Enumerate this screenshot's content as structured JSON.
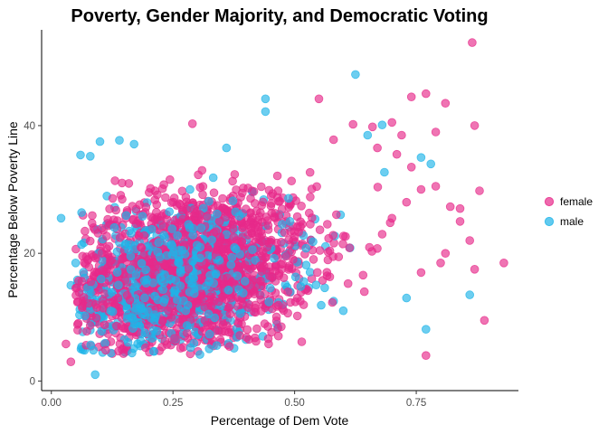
{
  "chart_data": {
    "type": "scatter",
    "title": "Poverty, Gender Majority, and Democratic Voting",
    "xlabel": "Percentage of Dem Vote",
    "ylabel": "Percentage Below Poverty Line",
    "xlim": [
      -0.02,
      0.96
    ],
    "ylim": [
      -1.5,
      55
    ],
    "x_ticks": [
      0,
      0.25,
      0.5,
      0.75
    ],
    "x_tick_labels": [
      "0.00",
      "0.25",
      "0.50",
      "0.75"
    ],
    "y_ticks": [
      0,
      20,
      40
    ],
    "y_tick_labels": [
      "0",
      "20",
      "40"
    ],
    "grid": false,
    "legend_position": "right",
    "series": [
      {
        "name": "female",
        "color": "#E7298A",
        "cluster": {
          "n": 1750,
          "x_mean": 0.28,
          "x_sd": 0.13,
          "y_mean": 17,
          "y_sd": 6.5
        },
        "points": [
          [
            0.865,
            53
          ],
          [
            0.77,
            45
          ],
          [
            0.74,
            44.5
          ],
          [
            0.55,
            44.2
          ],
          [
            0.81,
            43.5
          ],
          [
            0.7,
            40.5
          ],
          [
            0.62,
            40.2
          ],
          [
            0.29,
            40.3
          ],
          [
            0.87,
            40.0
          ],
          [
            0.66,
            39.8
          ],
          [
            0.72,
            38.5
          ],
          [
            0.79,
            39.0
          ],
          [
            0.58,
            37.8
          ],
          [
            0.93,
            18.5
          ],
          [
            0.89,
            9.5
          ],
          [
            0.87,
            17.5
          ],
          [
            0.77,
            4.0
          ],
          [
            0.04,
            3.0
          ],
          [
            0.03,
            5.8
          ],
          [
            0.88,
            29.8
          ],
          [
            0.84,
            27.0
          ],
          [
            0.86,
            22.0
          ],
          [
            0.81,
            20.0
          ],
          [
            0.8,
            18.5
          ],
          [
            0.76,
            17.0
          ],
          [
            0.84,
            25.0
          ],
          [
            0.82,
            27.3
          ],
          [
            0.79,
            30.5
          ],
          [
            0.74,
            33.5
          ],
          [
            0.71,
            35.5
          ],
          [
            0.67,
            36.5
          ],
          [
            0.76,
            30.0
          ],
          [
            0.73,
            28.0
          ],
          [
            0.7,
            25.5
          ],
          [
            0.68,
            23.0
          ]
        ]
      },
      {
        "name": "male",
        "color": "#1EB4E8",
        "cluster": {
          "n": 750,
          "x_mean": 0.25,
          "x_sd": 0.12,
          "y_mean": 15.5,
          "y_sd": 5.5
        },
        "points": [
          [
            0.625,
            48
          ],
          [
            0.44,
            44.2
          ],
          [
            0.44,
            42.2
          ],
          [
            0.68,
            40.1
          ],
          [
            0.65,
            38.5
          ],
          [
            0.1,
            37.5
          ],
          [
            0.14,
            37.7
          ],
          [
            0.06,
            35.4
          ],
          [
            0.08,
            35.2
          ],
          [
            0.17,
            37.1
          ],
          [
            0.36,
            36.5
          ],
          [
            0.76,
            35.0
          ],
          [
            0.09,
            1.0
          ],
          [
            0.13,
            27.2
          ],
          [
            0.86,
            13.5
          ],
          [
            0.77,
            8.1
          ],
          [
            0.73,
            13.0
          ],
          [
            0.58,
            12.5
          ],
          [
            0.6,
            11.0
          ],
          [
            0.05,
            18.5
          ],
          [
            0.04,
            15.0
          ],
          [
            0.78,
            34.0
          ],
          [
            0.02,
            25.5
          ]
        ]
      }
    ]
  }
}
